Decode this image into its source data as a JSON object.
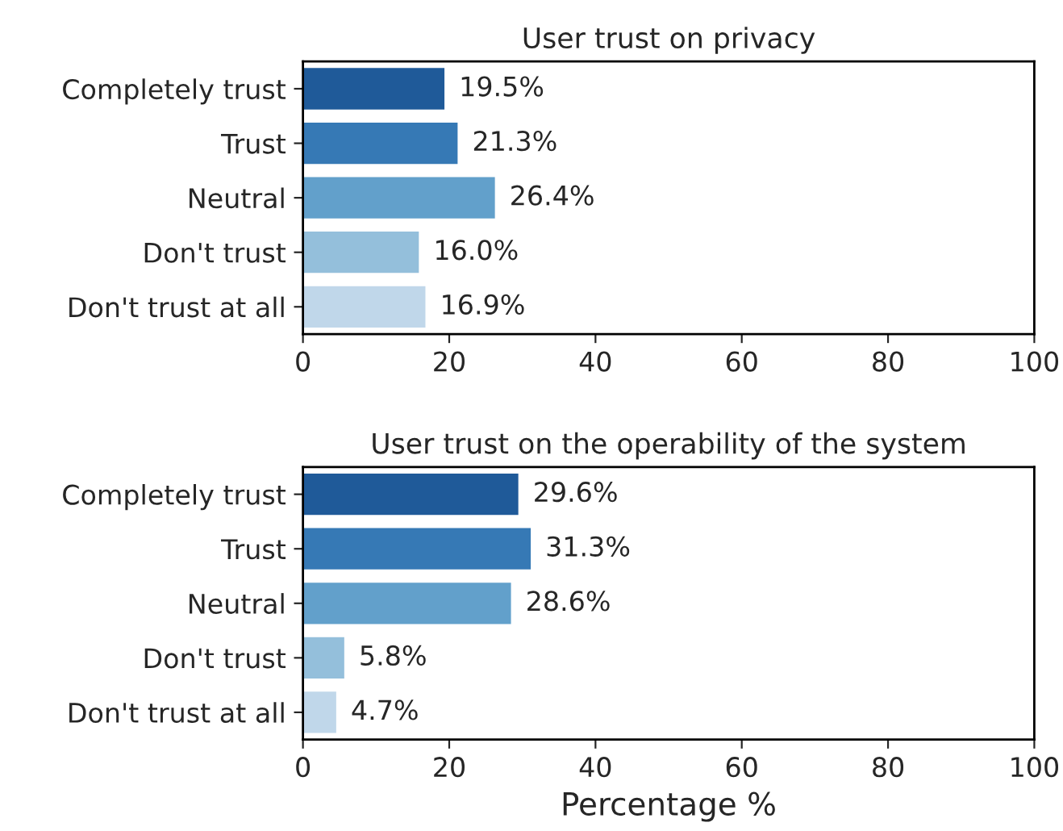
{
  "chart_data": [
    {
      "type": "bar",
      "orientation": "horizontal",
      "title": "User trust on privacy",
      "categories": [
        "Completely trust",
        "Trust",
        "Neutral",
        "Don't trust",
        "Don't trust at all"
      ],
      "values": [
        19.5,
        21.3,
        26.4,
        16.0,
        16.9
      ],
      "colors": [
        "#1f5a99",
        "#3679b5",
        "#62a0cb",
        "#94bfdb",
        "#c0d7ea"
      ],
      "value_labels": [
        "19.5%",
        "21.3%",
        "26.4%",
        "16.0%",
        "16.9%"
      ],
      "xlim": [
        0,
        100
      ],
      "xticks": [
        0,
        20,
        40,
        60,
        80,
        100
      ],
      "grid": false,
      "legend": false
    },
    {
      "type": "bar",
      "orientation": "horizontal",
      "title": "User trust on the operability of the system",
      "xlabel": "Percentage %",
      "categories": [
        "Completely trust",
        "Trust",
        "Neutral",
        "Don't trust",
        "Don't trust at all"
      ],
      "values": [
        29.6,
        31.3,
        28.6,
        5.8,
        4.7
      ],
      "colors": [
        "#1f5a99",
        "#3679b5",
        "#62a0cb",
        "#94bfdb",
        "#c0d7ea"
      ],
      "value_labels": [
        "29.6%",
        "31.3%",
        "28.6%",
        "5.8%",
        "4.7%"
      ],
      "xlim": [
        0,
        100
      ],
      "xticks": [
        0,
        20,
        40,
        60,
        80,
        100
      ],
      "grid": false,
      "legend": false
    }
  ]
}
